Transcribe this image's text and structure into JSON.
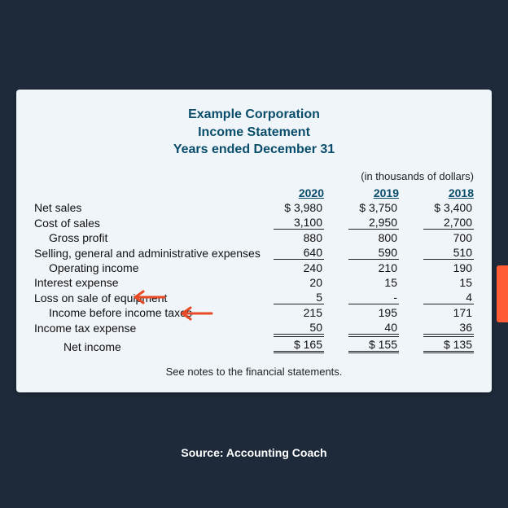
{
  "page_background": "#1e2a3a",
  "card_background": "#f0f5fa",
  "title_color": "#0a4d6b",
  "text_color": "#111111",
  "arrow_color": "#e84a27",
  "orange_tab_color": "#ff5c35",
  "title": {
    "line1": "Example Corporation",
    "line2": "Income Statement",
    "line3": "Years ended December 31"
  },
  "units_note": "(in thousands of dollars)",
  "years": [
    "2020",
    "2019",
    "2018"
  ],
  "rows": [
    {
      "label": "Net sales",
      "indent": 0,
      "vals": [
        "$ 3,980",
        "$ 3,750",
        "$ 3,400"
      ],
      "style": "plain"
    },
    {
      "label": "Cost of sales",
      "indent": 0,
      "vals": [
        "3,100",
        "2,950",
        "2,700"
      ],
      "style": "underline"
    },
    {
      "label": "Gross profit",
      "indent": 1,
      "vals": [
        "880",
        "800",
        "700"
      ],
      "style": "plain"
    },
    {
      "label": "Selling, general and administrative expenses",
      "indent": 0,
      "vals": [
        "640",
        "590",
        "510"
      ],
      "style": "underline"
    },
    {
      "label": "Operating income",
      "indent": 1,
      "vals": [
        "240",
        "210",
        "190"
      ],
      "style": "plain"
    },
    {
      "label": "Interest expense",
      "indent": 0,
      "vals": [
        "20",
        "15",
        "15"
      ],
      "style": "plain",
      "arrow": true
    },
    {
      "label": "Loss on sale of equipment",
      "indent": 0,
      "vals": [
        "5",
        "-",
        "4"
      ],
      "style": "underline",
      "arrow": true
    },
    {
      "label": "Income before income taxes",
      "indent": 1,
      "vals": [
        "215",
        "195",
        "171"
      ],
      "style": "plain"
    },
    {
      "label": "Income tax expense",
      "indent": 0,
      "vals": [
        "50",
        "40",
        "36"
      ],
      "style": "underline"
    },
    {
      "label": "Net income",
      "indent": 2,
      "vals": [
        "$   165",
        "$   155",
        "$   135"
      ],
      "style": "double"
    }
  ],
  "footnote": "See notes to the financial statements.",
  "source_label": "Source: Accounting Coach"
}
